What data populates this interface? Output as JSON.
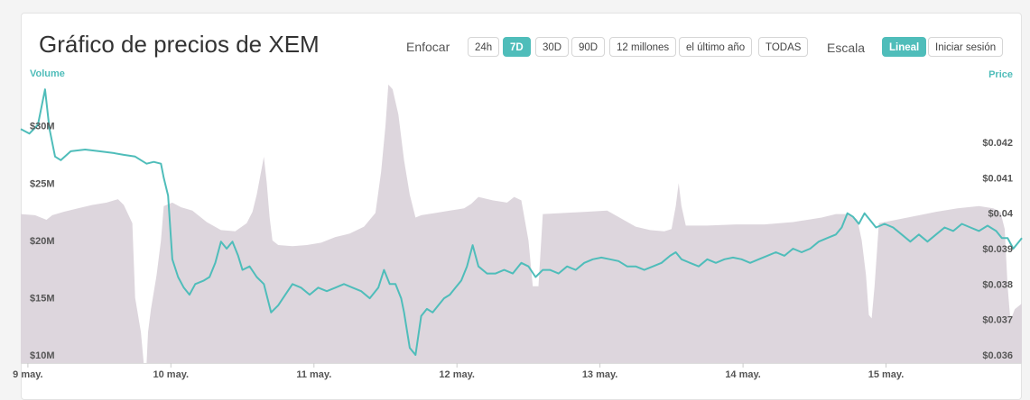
{
  "header": {
    "title": "Gráfico de precios de XEM",
    "zoom_label": "Enfocar",
    "zoom_buttons": [
      "24h",
      "7D",
      "30D",
      "90D",
      "12 millones",
      "el último año",
      "TODAS"
    ],
    "zoom_active": "7D",
    "scale_label": "Escala",
    "scale_buttons": [
      "Lineal",
      "Iniciar sesión"
    ],
    "scale_active": "Lineal"
  },
  "colors": {
    "accent": "#4fbdba",
    "volume_fill": "#ddd6dd",
    "price_line": "#4fbdba"
  },
  "chart_data": {
    "type": "line",
    "title": "Gráfico de precios de XEM",
    "left_axis_label": "Volume",
    "right_axis_label": "Price",
    "x_tick_labels": [
      "9 may.",
      "10 may.",
      "11 may.",
      "12 may.",
      "13 may.",
      "14 may.",
      "15 may."
    ],
    "volume_tick_labels": [
      "$10M",
      "$15M",
      "$20M",
      "$25M",
      "$30M"
    ],
    "volume_ticks": [
      10,
      15,
      20,
      25,
      30
    ],
    "price_tick_labels": [
      "$0.036",
      "$0.037",
      "$0.038",
      "$0.039",
      "$0.04",
      "$0.041",
      "$0.042"
    ],
    "price_ticks": [
      0.036,
      0.037,
      0.038,
      0.039,
      0.04,
      0.041,
      0.042
    ],
    "x_range": [
      0,
      7.0
    ],
    "volume_range_millions": [
      9.3,
      34.3
    ],
    "price_range": [
      0.03577,
      0.04386
    ],
    "series": [
      {
        "kind": "area",
        "unit": "millions USD",
        "points": [
          [
            0.0,
            22.3
          ],
          [
            0.1,
            22.2
          ],
          [
            0.18,
            21.8
          ],
          [
            0.22,
            22.2
          ],
          [
            0.3,
            22.5
          ],
          [
            0.4,
            22.8
          ],
          [
            0.5,
            23.1
          ],
          [
            0.6,
            23.3
          ],
          [
            0.68,
            23.6
          ],
          [
            0.72,
            23.1
          ],
          [
            0.78,
            21.5
          ],
          [
            0.8,
            15.0
          ],
          [
            0.84,
            12.0
          ],
          [
            0.86,
            9.3
          ],
          [
            0.88,
            9.3
          ],
          [
            0.89,
            12.0
          ],
          [
            0.91,
            14.0
          ],
          [
            0.95,
            17.0
          ],
          [
            0.98,
            20.0
          ],
          [
            1.0,
            23.0
          ],
          [
            1.06,
            23.3
          ],
          [
            1.12,
            22.9
          ],
          [
            1.2,
            22.6
          ],
          [
            1.3,
            21.6
          ],
          [
            1.4,
            20.9
          ],
          [
            1.5,
            20.8
          ],
          [
            1.58,
            21.5
          ],
          [
            1.62,
            22.5
          ],
          [
            1.65,
            24.0
          ],
          [
            1.68,
            26.0
          ],
          [
            1.7,
            27.3
          ],
          [
            1.72,
            25.0
          ],
          [
            1.74,
            22.0
          ],
          [
            1.76,
            20.0
          ],
          [
            1.8,
            19.6
          ],
          [
            1.9,
            19.5
          ],
          [
            2.0,
            19.6
          ],
          [
            2.1,
            19.8
          ],
          [
            2.2,
            20.3
          ],
          [
            2.3,
            20.6
          ],
          [
            2.4,
            21.2
          ],
          [
            2.48,
            22.4
          ],
          [
            2.52,
            26.0
          ],
          [
            2.55,
            30.0
          ],
          [
            2.57,
            33.6
          ],
          [
            2.6,
            33.2
          ],
          [
            2.64,
            31.0
          ],
          [
            2.68,
            27.0
          ],
          [
            2.72,
            24.0
          ],
          [
            2.76,
            22.0
          ],
          [
            2.8,
            22.2
          ],
          [
            2.9,
            22.4
          ],
          [
            3.0,
            22.6
          ],
          [
            3.1,
            22.8
          ],
          [
            3.15,
            23.2
          ],
          [
            3.2,
            23.8
          ],
          [
            3.3,
            23.5
          ],
          [
            3.4,
            23.3
          ],
          [
            3.45,
            23.8
          ],
          [
            3.5,
            23.5
          ],
          [
            3.55,
            20.0
          ],
          [
            3.58,
            16.0
          ],
          [
            3.62,
            16.0
          ],
          [
            3.65,
            22.3
          ],
          [
            3.8,
            22.4
          ],
          [
            3.95,
            22.5
          ],
          [
            4.1,
            22.6
          ],
          [
            4.3,
            21.2
          ],
          [
            4.4,
            20.9
          ],
          [
            4.5,
            20.8
          ],
          [
            4.55,
            21.0
          ],
          [
            4.58,
            23.0
          ],
          [
            4.6,
            25.0
          ],
          [
            4.62,
            23.0
          ],
          [
            4.65,
            21.3
          ],
          [
            4.8,
            21.3
          ],
          [
            5.0,
            21.4
          ],
          [
            5.2,
            21.4
          ],
          [
            5.4,
            21.6
          ],
          [
            5.6,
            22.0
          ],
          [
            5.7,
            22.3
          ],
          [
            5.8,
            22.3
          ],
          [
            5.85,
            21.8
          ],
          [
            5.88,
            20.0
          ],
          [
            5.91,
            17.0
          ],
          [
            5.93,
            13.5
          ],
          [
            5.95,
            13.2
          ],
          [
            5.97,
            16.0
          ],
          [
            6.0,
            21.5
          ],
          [
            6.2,
            22.0
          ],
          [
            6.4,
            22.5
          ],
          [
            6.55,
            22.8
          ],
          [
            6.7,
            23.0
          ],
          [
            6.8,
            22.8
          ],
          [
            6.85,
            22.5
          ],
          [
            6.88,
            21.0
          ],
          [
            6.9,
            16.0
          ],
          [
            6.92,
            13.0
          ],
          [
            6.95,
            14.0
          ],
          [
            7.0,
            14.5
          ]
        ]
      },
      {
        "kind": "line",
        "unit": "USD",
        "points": [
          [
            0.0,
            0.04238
          ],
          [
            0.06,
            0.04225
          ],
          [
            0.12,
            0.0425
          ],
          [
            0.17,
            0.0435
          ],
          [
            0.2,
            0.0424
          ],
          [
            0.24,
            0.0416
          ],
          [
            0.28,
            0.0415
          ],
          [
            0.35,
            0.04175
          ],
          [
            0.45,
            0.0418
          ],
          [
            0.55,
            0.04175
          ],
          [
            0.65,
            0.0417
          ],
          [
            0.72,
            0.04165
          ],
          [
            0.8,
            0.0416
          ],
          [
            0.88,
            0.0414
          ],
          [
            0.93,
            0.04145
          ],
          [
            0.98,
            0.0414
          ],
          [
            1.0,
            0.041
          ],
          [
            1.03,
            0.0405
          ],
          [
            1.06,
            0.0387
          ],
          [
            1.1,
            0.0382
          ],
          [
            1.14,
            0.0379
          ],
          [
            1.18,
            0.0377
          ],
          [
            1.22,
            0.038
          ],
          [
            1.28,
            0.0381
          ],
          [
            1.32,
            0.0382
          ],
          [
            1.36,
            0.0386
          ],
          [
            1.4,
            0.0392
          ],
          [
            1.44,
            0.039
          ],
          [
            1.48,
            0.0392
          ],
          [
            1.52,
            0.0388
          ],
          [
            1.55,
            0.0384
          ],
          [
            1.6,
            0.0385
          ],
          [
            1.65,
            0.0382
          ],
          [
            1.7,
            0.038
          ],
          [
            1.75,
            0.0372
          ],
          [
            1.8,
            0.0374
          ],
          [
            1.85,
            0.0377
          ],
          [
            1.9,
            0.038
          ],
          [
            1.96,
            0.0379
          ],
          [
            2.02,
            0.0377
          ],
          [
            2.08,
            0.0379
          ],
          [
            2.14,
            0.0378
          ],
          [
            2.2,
            0.0379
          ],
          [
            2.26,
            0.038
          ],
          [
            2.32,
            0.0379
          ],
          [
            2.38,
            0.0378
          ],
          [
            2.44,
            0.0376
          ],
          [
            2.5,
            0.0379
          ],
          [
            2.54,
            0.0384
          ],
          [
            2.58,
            0.038
          ],
          [
            2.62,
            0.038
          ],
          [
            2.66,
            0.0376
          ],
          [
            2.68,
            0.0372
          ],
          [
            2.72,
            0.0362
          ],
          [
            2.76,
            0.036
          ],
          [
            2.8,
            0.0371
          ],
          [
            2.84,
            0.0373
          ],
          [
            2.88,
            0.0372
          ],
          [
            2.92,
            0.0374
          ],
          [
            2.96,
            0.0376
          ],
          [
            3.0,
            0.0377
          ],
          [
            3.04,
            0.0379
          ],
          [
            3.08,
            0.0381
          ],
          [
            3.12,
            0.0385
          ],
          [
            3.16,
            0.0391
          ],
          [
            3.2,
            0.0385
          ],
          [
            3.26,
            0.0383
          ],
          [
            3.32,
            0.0383
          ],
          [
            3.38,
            0.0384
          ],
          [
            3.44,
            0.0383
          ],
          [
            3.5,
            0.0386
          ],
          [
            3.55,
            0.0385
          ],
          [
            3.6,
            0.0382
          ],
          [
            3.65,
            0.0384
          ],
          [
            3.7,
            0.0384
          ],
          [
            3.76,
            0.0383
          ],
          [
            3.82,
            0.0385
          ],
          [
            3.88,
            0.0384
          ],
          [
            3.94,
            0.0386
          ],
          [
            4.0,
            0.0387
          ],
          [
            4.06,
            0.03875
          ],
          [
            4.12,
            0.0387
          ],
          [
            4.18,
            0.03865
          ],
          [
            4.24,
            0.0385
          ],
          [
            4.3,
            0.0385
          ],
          [
            4.36,
            0.0384
          ],
          [
            4.42,
            0.0385
          ],
          [
            4.48,
            0.0386
          ],
          [
            4.54,
            0.0388
          ],
          [
            4.58,
            0.0389
          ],
          [
            4.62,
            0.0387
          ],
          [
            4.68,
            0.0386
          ],
          [
            4.74,
            0.0385
          ],
          [
            4.8,
            0.0387
          ],
          [
            4.86,
            0.0386
          ],
          [
            4.92,
            0.0387
          ],
          [
            4.98,
            0.03875
          ],
          [
            5.04,
            0.0387
          ],
          [
            5.1,
            0.0386
          ],
          [
            5.16,
            0.0387
          ],
          [
            5.22,
            0.0388
          ],
          [
            5.28,
            0.0389
          ],
          [
            5.34,
            0.0388
          ],
          [
            5.4,
            0.039
          ],
          [
            5.46,
            0.0389
          ],
          [
            5.52,
            0.039
          ],
          [
            5.58,
            0.0392
          ],
          [
            5.64,
            0.0393
          ],
          [
            5.7,
            0.0394
          ],
          [
            5.74,
            0.0396
          ],
          [
            5.78,
            0.04
          ],
          [
            5.82,
            0.0399
          ],
          [
            5.86,
            0.0397
          ],
          [
            5.9,
            0.04
          ],
          [
            5.94,
            0.0398
          ],
          [
            5.98,
            0.0396
          ],
          [
            6.04,
            0.0397
          ],
          [
            6.1,
            0.0396
          ],
          [
            6.16,
            0.0394
          ],
          [
            6.22,
            0.0392
          ],
          [
            6.28,
            0.0394
          ],
          [
            6.34,
            0.0392
          ],
          [
            6.4,
            0.0394
          ],
          [
            6.46,
            0.0396
          ],
          [
            6.52,
            0.0395
          ],
          [
            6.58,
            0.0397
          ],
          [
            6.64,
            0.0396
          ],
          [
            6.7,
            0.0395
          ],
          [
            6.76,
            0.03965
          ],
          [
            6.82,
            0.0395
          ],
          [
            6.86,
            0.0393
          ],
          [
            6.9,
            0.0393
          ],
          [
            6.94,
            0.039
          ],
          [
            6.98,
            0.0392
          ],
          [
            7.0,
            0.0393
          ]
        ]
      }
    ],
    "grid": false,
    "legend": "none"
  }
}
